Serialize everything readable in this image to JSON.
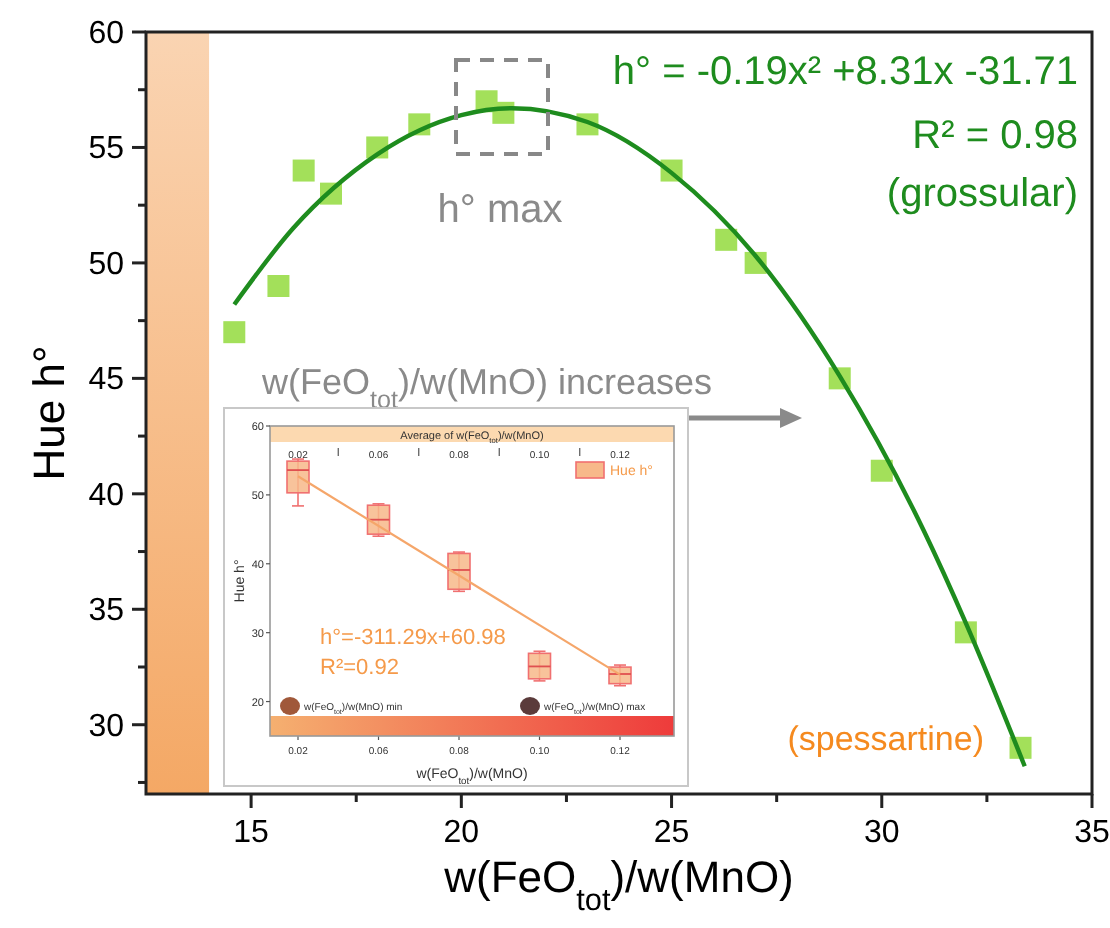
{
  "chart_data": [
    {
      "type": "scatter",
      "xlabel": "w(FeO$_{tot}$)/w(MnO)",
      "ylabel": "Hue h°",
      "xlim": [
        12.5,
        35
      ],
      "ylim": [
        27,
        60
      ],
      "xticks": [
        15,
        {
          "value": 17.5,
          "label": null
        },
        20,
        {
          "value": 22.5,
          "label": null
        },
        25,
        {
          "value": 27.5,
          "label": null
        },
        30,
        {
          "value": 32.5,
          "label": null
        },
        35
      ],
      "yticks": [
        {
          "value": 27.5,
          "label": null
        },
        30,
        {
          "value": 32.5,
          "label": null
        },
        35,
        {
          "value": 37.5,
          "label": null
        },
        40,
        {
          "value": 42.5,
          "label": null
        },
        45,
        {
          "value": 47.5,
          "label": null
        },
        50,
        {
          "value": 52.5,
          "label": null
        },
        55,
        {
          "value": 57.5,
          "label": null
        },
        60
      ],
      "series": [
        {
          "type": "scatter",
          "marker": "square",
          "color": "#a3e05a",
          "x": [
            14.6,
            15.65,
            16.25,
            16.9,
            18.0,
            19.0,
            20.6,
            21.0,
            23.0,
            25.0,
            26.3,
            27.0,
            29.0,
            30.0,
            32.0,
            33.3
          ],
          "values": [
            47.0,
            49.0,
            54.0,
            53.0,
            55.0,
            56.0,
            57.0,
            56.5,
            56.0,
            54.0,
            51.0,
            50.0,
            45.0,
            41.0,
            34.0,
            29.0
          ]
        },
        {
          "type": "line",
          "color": "#1e8c1e",
          "x": [
            14.6,
            16,
            18,
            20,
            21.2,
            23,
            25,
            27,
            29,
            31,
            32,
            33.4
          ],
          "values": [
            48.2,
            51.5,
            54.7,
            56.4,
            56.7,
            56.1,
            53.9,
            50.3,
            45.1,
            38.4,
            34.4,
            28.2
          ]
        }
      ],
      "bands": [
        {
          "axis": "x",
          "from": 12.5,
          "to": 14,
          "color": "#f4a865"
        }
      ],
      "annotations": [
        "h° = -0.19x² +8.31x -31.71",
        "R² = 0.98",
        "(grossular)",
        "h° max",
        "w(FeO$_{tot}$)/w(MnO) increases",
        "(spessartine)"
      ]
    },
    {
      "type": "box",
      "xlabel": "w(FeO$_{tot}$)/w(MnO)",
      "x2label": "Average of w(FeO$_{tot}$)/w(MnO)",
      "ylabel": "Hue h°",
      "categories": [
        "0.02",
        "0.06",
        "0.08",
        "0.10",
        "0.12"
      ],
      "ylim": [
        15,
        60
      ],
      "yticks": [
        20,
        30,
        40,
        50,
        60
      ],
      "legend": "top right",
      "series": [
        {
          "type": "box",
          "name": "Hue h°",
          "color": "#f7b98a",
          "boxes": [
            {
              "low": 48.4,
              "q1": 50.3,
              "median": 53.6,
              "q3": 54.9,
              "high": 55.2
            },
            {
              "low": 44.0,
              "q1": 44.3,
              "median": 46.4,
              "q3": 48.5,
              "high": 48.7
            },
            {
              "low": 36.0,
              "q1": 36.3,
              "median": 39.1,
              "q3": 41.5,
              "high": 41.7
            },
            {
              "low": 23.0,
              "q1": 23.3,
              "median": 25.1,
              "q3": 27.0,
              "high": 27.3
            },
            {
              "low": 22.3,
              "q1": 22.6,
              "median": 24.0,
              "q3": 25.0,
              "high": 25.3
            }
          ]
        },
        {
          "type": "line",
          "color": "#f5a66a",
          "x": [
            "0.02",
            "0.12"
          ],
          "values": [
            52.7,
            23.9
          ]
        }
      ],
      "annotations": [
        "h°=-311.29x+60.98",
        "R²=0.92",
        "w(FeO$_{tot}$)/w(MnO) min",
        "w(FeO$_{tot}$)/w(MnO) max"
      ]
    }
  ]
}
